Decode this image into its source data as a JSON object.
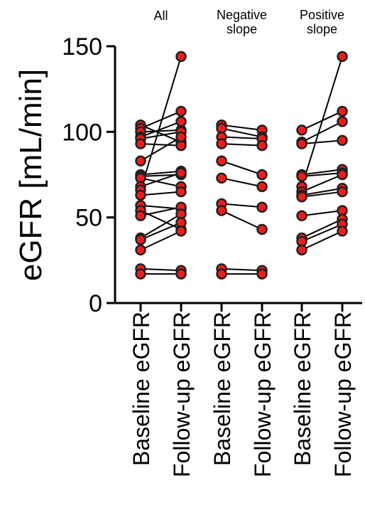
{
  "chart_data": {
    "type": "scatter",
    "ylabel": "eGFR [mL/min]",
    "ylim": [
      0,
      150
    ],
    "yticks": [
      0,
      50,
      100,
      150
    ],
    "groups": [
      {
        "title_lines": [
          "All"
        ],
        "xlabels": [
          "Baseline eGFR",
          "Follow-up eGFR"
        ],
        "pairs": [
          [
            104,
            94
          ],
          [
            102,
            112
          ],
          [
            100,
            101
          ],
          [
            97,
            106
          ],
          [
            96,
            100
          ],
          [
            93,
            92
          ],
          [
            83,
            97
          ],
          [
            75,
            77
          ],
          [
            74,
            75
          ],
          [
            73,
            68
          ],
          [
            68,
            76
          ],
          [
            66,
            144
          ],
          [
            63,
            65
          ],
          [
            57,
            55
          ],
          [
            54,
            43
          ],
          [
            51,
            56
          ],
          [
            38,
            52
          ],
          [
            37,
            47
          ],
          [
            31,
            42
          ],
          [
            20,
            19
          ],
          [
            17,
            17
          ]
        ]
      },
      {
        "title_lines": [
          "Negative",
          "slope"
        ],
        "xlabels": [
          "Baseline eGFR",
          "Follow-up eGFR"
        ],
        "pairs": [
          [
            104,
            101
          ],
          [
            102,
            97
          ],
          [
            97,
            96
          ],
          [
            93,
            92
          ],
          [
            83,
            75
          ],
          [
            73,
            68
          ],
          [
            58,
            56
          ],
          [
            54,
            43
          ],
          [
            20,
            19
          ],
          [
            17,
            17
          ]
        ]
      },
      {
        "title_lines": [
          "Positive",
          "slope"
        ],
        "xlabels": [
          "Baseline eGFR",
          "Follow-up eGFR"
        ],
        "pairs": [
          [
            101,
            112
          ],
          [
            94,
            106
          ],
          [
            93,
            95
          ],
          [
            75,
            78
          ],
          [
            74,
            76
          ],
          [
            68,
            144
          ],
          [
            65,
            75
          ],
          [
            63,
            67
          ],
          [
            62,
            65
          ],
          [
            51,
            54
          ],
          [
            38,
            49
          ],
          [
            36,
            46
          ],
          [
            31,
            42
          ]
        ]
      }
    ],
    "colors": {
      "marker_fill": "#ee1c1c",
      "marker_stroke": "#231f20",
      "line": "#000000"
    }
  }
}
